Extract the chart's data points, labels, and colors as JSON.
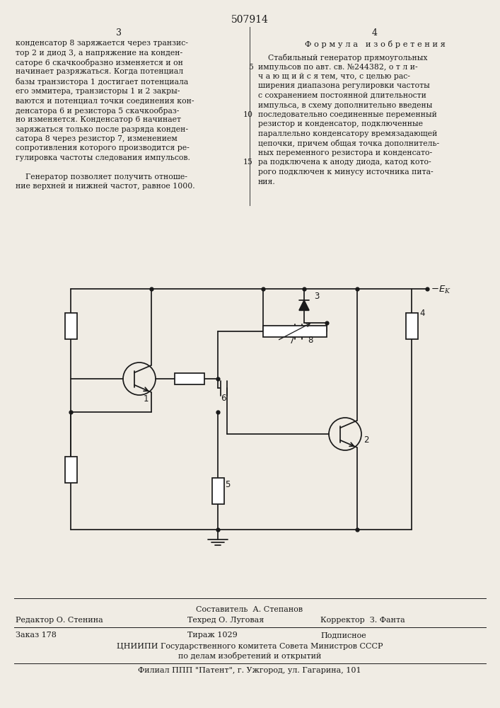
{
  "patent_number": "507914",
  "bg_color": "#f0ece4",
  "text_color": "#1a1a1a",
  "left_col_lines": [
    "конденсатор 8 заряжается через транзис-",
    "тор 2 и диод 3, а напряжение на конден-",
    "саторе 6 скачкообразно изменяется и он",
    "начинает разряжаться. Когда потенциал",
    "базы транзистора 1 достигает потенциала",
    "его эммитера, транзисторы 1 и 2 закры-",
    "ваются и потенциал точки соединения кон-",
    "денсатора 6 и резистора 5 скачкообраз-",
    "но изменяется. Конденсатор 6 начинает",
    "заряжаться только после разряда конден-",
    "сатора 8 через резистор 7, изменением",
    "сопротивления которого производится ре-",
    "гулировка частоты следования импульсов.",
    "",
    "    Генератор позволяет получить отноше-",
    "ние верхней и нижней частот, равное 1000."
  ],
  "formula_header": "Ф о р м у л а   и з о б р е т е н и я",
  "right_col_lines": [
    "    Стабильный генератор прямоугольных",
    "импульсов по авт. св. №244382, о т л и-",
    "ч а ю щ и й с я тем, что, с целью рас-",
    "ширения диапазона регулировки частоты",
    "с сохранением постоянной длительности",
    "импульса, в схему дополнительно введены",
    "последовательно соединенные переменный",
    "резистор и конденсатор, подключенные",
    "параллельно конденсатору времязадающей",
    "цепочки, причем общая точка дополнитель-",
    "ных переменного резистора и конденсато-",
    "ра подключена к аноду диода, катод кото-",
    "рого подключен к минусу источника пита-",
    "ния."
  ],
  "footer_compiler": "Составитель  А. Степанов",
  "footer_editor": "Редактор О. Стенина",
  "footer_tech": "Техред О. Луговая",
  "footer_corrector": "Корректор  З. Фанта",
  "footer_order": "Заказ 178",
  "footer_tirazh": "Тираж 1029",
  "footer_podpisnoe": "Подписное",
  "footer_org1": "ЦНИИПИ Государственного комитета Совета Министров СССР",
  "footer_org2": "по делам изобретений и открытий",
  "footer_filial": "Филиал ППП \"Патент\", г. Ужгород, ул. Гагарина, 101"
}
